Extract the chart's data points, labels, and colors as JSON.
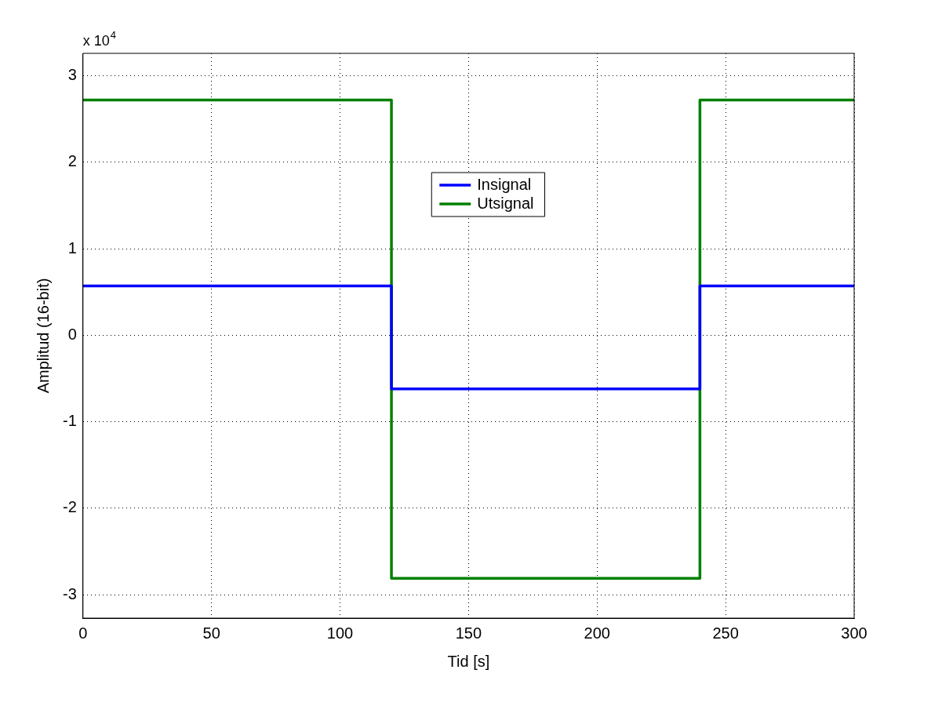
{
  "chart_data": {
    "type": "line",
    "xlabel": "Tid [s]",
    "ylabel": "Amplitud (16-bit)",
    "annotations": [
      "x 10$^{4}$"
    ],
    "xlim": [
      0,
      300
    ],
    "xticks": [
      0,
      50,
      100,
      150,
      200,
      250,
      300
    ],
    "ylim": [
      -3.27,
      3.26
    ],
    "yticks": [
      -3,
      -2,
      -1,
      0,
      1,
      2,
      3
    ],
    "grid": true,
    "legend": "top",
    "line_style": "solid",
    "marker": "none",
    "series": [
      {
        "name": "Insignal",
        "color": "#0000ff",
        "x": [
          0,
          120,
          120,
          240,
          240,
          300
        ],
        "values": [
          0.57,
          0.57,
          -0.62,
          -0.62,
          0.57,
          0.57
        ]
      },
      {
        "name": "Utsignal",
        "color": "#008000",
        "x": [
          0,
          120,
          120,
          240,
          240,
          300
        ],
        "values": [
          2.72,
          2.72,
          -2.81,
          -2.81,
          2.72,
          2.72
        ]
      }
    ]
  }
}
